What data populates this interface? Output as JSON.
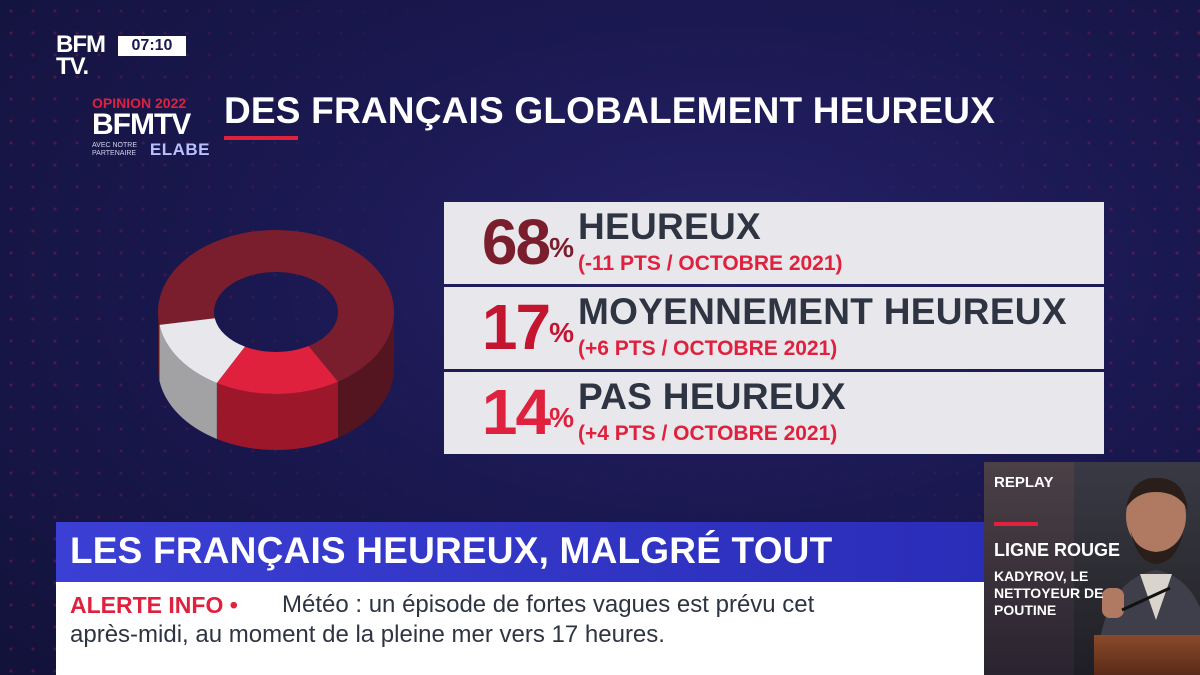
{
  "channel": {
    "logo_line1": "BFM",
    "logo_line2": "TV.",
    "time": "07:10"
  },
  "badge": {
    "line1": "OPINION 2022",
    "line2": "BFMTV",
    "partner_small": "AVEC NOTRE PARTENAIRE",
    "partner": "ELABE"
  },
  "headline": "DES FRANÇAIS GLOBALEMENT HEUREUX",
  "chart_data": {
    "type": "pie",
    "style": "3d-donut",
    "title": "DES FRANÇAIS GLOBALEMENT HEUREUX",
    "series": [
      {
        "name": "HEUREUX",
        "value": 68,
        "change": "(-11 PTS / OCTOBRE 2021)",
        "color": "#7a1e2e"
      },
      {
        "name": "MOYENNEMENT HEUREUX",
        "value": 17,
        "change": "(+6 PTS / OCTOBRE 2021)",
        "color": "#e0213e"
      },
      {
        "name": "PAS HEUREUX",
        "value": 14,
        "change": "(+4 PTS / OCTOBRE 2021)",
        "color": "#e8e8ec"
      }
    ],
    "legend": "right"
  },
  "legend_rows": [
    {
      "pct": "68",
      "sign": "%",
      "label": "HEUREUX",
      "change": "(-11 PTS / OCTOBRE 2021)",
      "color": "#7a1e2e"
    },
    {
      "pct": "17",
      "sign": "%",
      "label": "MOYENNEMENT HEUREUX",
      "change": "(+6 PTS / OCTOBRE 2021)",
      "color": "#c3152f"
    },
    {
      "pct": "14",
      "sign": "%",
      "label": "PAS HEUREUX",
      "change": "(+4 PTS / OCTOBRE 2021)",
      "color": "#e0213e"
    }
  ],
  "banner": "LES FRANÇAIS HEUREUX, MALGRÉ TOUT",
  "ticker": {
    "alert": "ALERTE INFO •",
    "line1": "Météo : un épisode de fortes vagues est prévu cet",
    "line2": "après-midi, au moment de la pleine mer vers 17 heures."
  },
  "replay": {
    "tag": "REPLAY",
    "show": "LIGNE ROUGE",
    "desc": "KADYROV, LE NETTOYEUR DE POUTINE"
  }
}
